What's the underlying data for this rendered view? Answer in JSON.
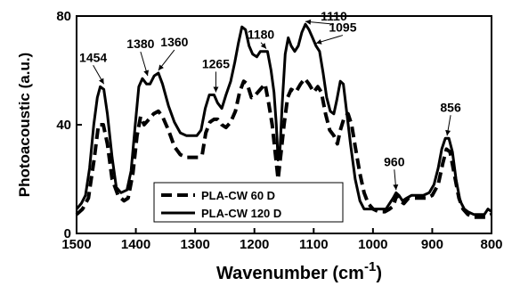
{
  "chart_data": {
    "type": "line",
    "title": "",
    "xlabel": "Wavenumber (cm",
    "xlabel_sup": "-1",
    "xlabel_close": ")",
    "ylabel": "Photoacoustic (a.u.)",
    "xlim": [
      1500,
      800
    ],
    "ylim": [
      0,
      80
    ],
    "x_reversed": true,
    "x_ticks": [
      1500,
      1400,
      1300,
      1200,
      1100,
      1000,
      900,
      800
    ],
    "y_ticks": [
      0,
      40,
      80
    ],
    "grid": false,
    "legend_position": "bottom-left",
    "series": [
      {
        "name": "PLA-CW 60 D",
        "style": "dashed",
        "color": "#000000",
        "points": [
          [
            1500,
            7
          ],
          [
            1490,
            9
          ],
          [
            1480,
            13
          ],
          [
            1470,
            28
          ],
          [
            1463,
            40
          ],
          [
            1455,
            40
          ],
          [
            1448,
            33
          ],
          [
            1440,
            20
          ],
          [
            1430,
            14
          ],
          [
            1420,
            12
          ],
          [
            1413,
            13
          ],
          [
            1405,
            22
          ],
          [
            1398,
            36
          ],
          [
            1392,
            43
          ],
          [
            1386,
            40
          ],
          [
            1378,
            42
          ],
          [
            1370,
            44
          ],
          [
            1362,
            45
          ],
          [
            1355,
            43
          ],
          [
            1345,
            38
          ],
          [
            1335,
            32
          ],
          [
            1325,
            29
          ],
          [
            1315,
            28
          ],
          [
            1305,
            28
          ],
          [
            1295,
            28
          ],
          [
            1288,
            29
          ],
          [
            1282,
            37
          ],
          [
            1275,
            41
          ],
          [
            1268,
            42
          ],
          [
            1262,
            42
          ],
          [
            1255,
            40
          ],
          [
            1248,
            39
          ],
          [
            1240,
            41
          ],
          [
            1232,
            45
          ],
          [
            1225,
            52
          ],
          [
            1218,
            56
          ],
          [
            1212,
            55
          ],
          [
            1205,
            50
          ],
          [
            1198,
            51
          ],
          [
            1190,
            53
          ],
          [
            1182,
            55
          ],
          [
            1176,
            48
          ],
          [
            1170,
            40
          ],
          [
            1165,
            30
          ],
          [
            1160,
            20
          ],
          [
            1155,
            30
          ],
          [
            1150,
            40
          ],
          [
            1144,
            50
          ],
          [
            1138,
            53
          ],
          [
            1130,
            52
          ],
          [
            1122,
            55
          ],
          [
            1115,
            57
          ],
          [
            1108,
            55
          ],
          [
            1100,
            52
          ],
          [
            1093,
            54
          ],
          [
            1087,
            52
          ],
          [
            1080,
            44
          ],
          [
            1073,
            38
          ],
          [
            1066,
            36
          ],
          [
            1060,
            33
          ],
          [
            1055,
            38
          ],
          [
            1048,
            43
          ],
          [
            1042,
            44
          ],
          [
            1036,
            40
          ],
          [
            1030,
            32
          ],
          [
            1022,
            22
          ],
          [
            1015,
            15
          ],
          [
            1008,
            11
          ],
          [
            1000,
            9
          ],
          [
            990,
            8
          ],
          [
            980,
            8
          ],
          [
            972,
            9
          ],
          [
            966,
            10
          ],
          [
            960,
            14
          ],
          [
            954,
            12
          ],
          [
            948,
            11
          ],
          [
            940,
            13
          ],
          [
            930,
            13
          ],
          [
            920,
            13
          ],
          [
            910,
            13
          ],
          [
            900,
            14
          ],
          [
            890,
            18
          ],
          [
            882,
            26
          ],
          [
            876,
            31
          ],
          [
            870,
            30
          ],
          [
            863,
            22
          ],
          [
            855,
            13
          ],
          [
            848,
            9
          ],
          [
            840,
            7
          ],
          [
            830,
            6
          ],
          [
            820,
            6
          ],
          [
            810,
            6
          ],
          [
            800,
            7
          ]
        ]
      },
      {
        "name": "PLA-CW 120 D",
        "style": "solid",
        "color": "#000000",
        "points": [
          [
            1500,
            9
          ],
          [
            1492,
            11
          ],
          [
            1485,
            14
          ],
          [
            1478,
            24
          ],
          [
            1471,
            40
          ],
          [
            1465,
            50
          ],
          [
            1460,
            54
          ],
          [
            1454,
            53
          ],
          [
            1448,
            44
          ],
          [
            1440,
            28
          ],
          [
            1433,
            17
          ],
          [
            1425,
            15
          ],
          [
            1415,
            16
          ],
          [
            1408,
            23
          ],
          [
            1401,
            40
          ],
          [
            1395,
            54
          ],
          [
            1389,
            57
          ],
          [
            1382,
            55
          ],
          [
            1376,
            55
          ],
          [
            1369,
            58
          ],
          [
            1362,
            59
          ],
          [
            1355,
            55
          ],
          [
            1345,
            47
          ],
          [
            1335,
            41
          ],
          [
            1325,
            37
          ],
          [
            1315,
            36
          ],
          [
            1305,
            36
          ],
          [
            1297,
            36
          ],
          [
            1290,
            38
          ],
          [
            1283,
            46
          ],
          [
            1276,
            51
          ],
          [
            1268,
            51
          ],
          [
            1262,
            48
          ],
          [
            1255,
            46
          ],
          [
            1248,
            51
          ],
          [
            1240,
            56
          ],
          [
            1233,
            63
          ],
          [
            1227,
            70
          ],
          [
            1221,
            76
          ],
          [
            1215,
            75
          ],
          [
            1209,
            69
          ],
          [
            1203,
            66
          ],
          [
            1196,
            65
          ],
          [
            1190,
            67
          ],
          [
            1184,
            67
          ],
          [
            1178,
            67
          ],
          [
            1172,
            60
          ],
          [
            1167,
            52
          ],
          [
            1163,
            40
          ],
          [
            1160,
            27
          ],
          [
            1157,
            30
          ],
          [
            1153,
            48
          ],
          [
            1148,
            66
          ],
          [
            1143,
            72
          ],
          [
            1138,
            69
          ],
          [
            1132,
            67
          ],
          [
            1126,
            69
          ],
          [
            1120,
            74
          ],
          [
            1114,
            77
          ],
          [
            1108,
            75
          ],
          [
            1102,
            72
          ],
          [
            1096,
            69
          ],
          [
            1090,
            67
          ],
          [
            1084,
            59
          ],
          [
            1078,
            50
          ],
          [
            1072,
            45
          ],
          [
            1066,
            44
          ],
          [
            1061,
            49
          ],
          [
            1055,
            56
          ],
          [
            1050,
            55
          ],
          [
            1044,
            44
          ],
          [
            1038,
            33
          ],
          [
            1030,
            20
          ],
          [
            1022,
            12
          ],
          [
            1015,
            9
          ],
          [
            1005,
            9
          ],
          [
            995,
            9
          ],
          [
            985,
            9
          ],
          [
            978,
            9
          ],
          [
            972,
            11
          ],
          [
            966,
            13
          ],
          [
            961,
            15
          ],
          [
            956,
            14
          ],
          [
            950,
            12
          ],
          [
            943,
            13
          ],
          [
            935,
            14
          ],
          [
            925,
            14
          ],
          [
            915,
            14
          ],
          [
            905,
            15
          ],
          [
            897,
            18
          ],
          [
            890,
            24
          ],
          [
            884,
            31
          ],
          [
            878,
            35
          ],
          [
            872,
            35
          ],
          [
            866,
            30
          ],
          [
            860,
            20
          ],
          [
            853,
            12
          ],
          [
            846,
            9
          ],
          [
            840,
            8
          ],
          [
            830,
            7
          ],
          [
            820,
            7
          ],
          [
            812,
            7
          ],
          [
            806,
            9
          ],
          [
            800,
            8
          ]
        ]
      }
    ],
    "annotations": [
      {
        "text": "1454",
        "x": 1454,
        "y": 54
      },
      {
        "text": "1380",
        "x": 1380,
        "y": 57
      },
      {
        "text": "1360",
        "x": 1362,
        "y": 59
      },
      {
        "text": "1265",
        "x": 1265,
        "y": 51
      },
      {
        "text": "1180",
        "x": 1180,
        "y": 67
      },
      {
        "text": "1110",
        "x": 1114,
        "y": 77
      },
      {
        "text": "1095",
        "x": 1096,
        "y": 69
      },
      {
        "text": "960",
        "x": 961,
        "y": 15
      },
      {
        "text": "856",
        "x": 875,
        "y": 35
      }
    ]
  }
}
